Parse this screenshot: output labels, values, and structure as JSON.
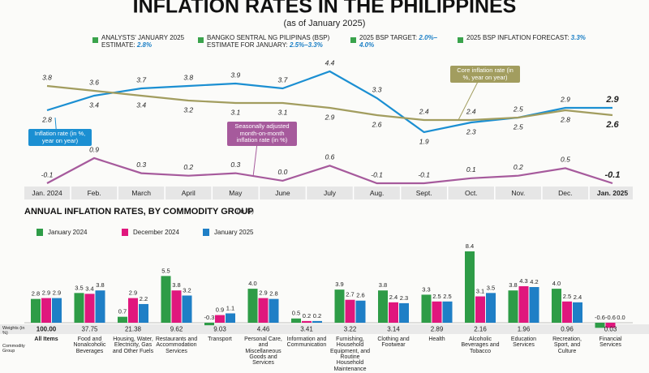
{
  "header": {
    "title": "INFLATION RATES IN THE PHILIPPINES",
    "subtitle": "(as of January 2025)",
    "notes": [
      {
        "label": "ANALYSTS' JANUARY 2025 ESTIMATE:",
        "value": "2.8%"
      },
      {
        "label": "BANGKO SENTRAL NG PILIPINAS (BSP) ESTIMATE FOR JANUARY:",
        "value": "2.5%–3.3%"
      },
      {
        "label": "2025 BSP TARGET:",
        "value": "2.0%–4.0%"
      },
      {
        "label": "2025 BSP INFLATION FORECAST:",
        "value": "3.3%"
      }
    ]
  },
  "chart_data": [
    {
      "type": "line",
      "categories": [
        "Jan. 2024",
        "Feb.",
        "March",
        "April",
        "May",
        "June",
        "July",
        "Aug.",
        "Sept.",
        "Oct.",
        "Nov.",
        "Dec.",
        "Jan. 2025"
      ],
      "series": [
        {
          "name": "Inflation rate (in %, year on year)",
          "color": "#1b8fd2",
          "values": [
            2.8,
            3.4,
            3.7,
            3.8,
            3.9,
            3.7,
            4.4,
            3.3,
            1.9,
            2.3,
            2.5,
            2.9,
            2.9
          ]
        },
        {
          "name": "Core inflation rate (in %, year on year)",
          "color": "#a29d5f",
          "values": [
            3.8,
            3.6,
            3.4,
            3.2,
            3.1,
            3.1,
            2.9,
            2.6,
            2.4,
            2.4,
            2.5,
            2.8,
            2.6
          ]
        },
        {
          "name": "Seasonally adjusted month-on-month inflation rate (in %)",
          "color": "#a65a9c",
          "axis": "y2",
          "values": [
            -0.1,
            0.9,
            0.3,
            0.2,
            0.3,
            0.0,
            0.6,
            -0.1,
            -0.1,
            0.1,
            0.2,
            0.5,
            -0.1
          ],
          "value_labels": [
            "-0.1",
            "0.9",
            "0.3",
            "0.2",
            "0.3",
            "0.0",
            "0.6",
            "-0.1",
            "-0.1",
            "0.1",
            "0.2",
            "0.5",
            "-0.1"
          ]
        }
      ]
    },
    {
      "type": "bar",
      "title": "ANNUAL INFLATION RATES, BY COMMODITY GROUP",
      "subtitle": "(in %)",
      "weights_label": "Weights (in %)",
      "group_label": "Commodity Group",
      "categories": [
        "All Items",
        "Food and Nonalcoholic Beverages",
        "Housing, Water, Electricity, Gas and Other Fuels",
        "Restaurants and Accommodation Services",
        "Transport",
        "Personal Care, and Miscellaneous Goods and Services",
        "Information and Communication",
        "Furnishing, Household Equipment, and Routine Household Maintenance",
        "Clothing and Footwear",
        "Health",
        "Alcoholic Beverages and Tobacco",
        "Education Services",
        "Recreation, Sport, and Culture",
        "Financial Services"
      ],
      "weights": [
        "100.00",
        "37.75",
        "21.38",
        "9.62",
        "9.03",
        "4.46",
        "3.41",
        "3.22",
        "3.14",
        "2.89",
        "2.16",
        "1.96",
        "0.96",
        "0.03"
      ],
      "series": [
        {
          "name": "January 2024",
          "color": "#2e9c47",
          "values": [
            2.8,
            3.5,
            0.7,
            5.5,
            -0.3,
            4.0,
            0.5,
            3.9,
            3.8,
            3.3,
            8.4,
            3.8,
            4.0,
            -0.6
          ],
          "value_labels": [
            "2.8",
            "3.5",
            "0.7",
            "5.5",
            "-0.3",
            "4.0",
            "0.5",
            "3.9",
            "3.8",
            "3.3",
            "8.4",
            "3.8",
            "4.0",
            "-0.6"
          ]
        },
        {
          "name": "December 2024",
          "color": "#e0177d",
          "values": [
            2.9,
            3.4,
            2.9,
            3.8,
            0.9,
            2.9,
            0.2,
            2.7,
            2.4,
            2.5,
            3.1,
            4.3,
            2.5,
            -0.6
          ],
          "value_labels": [
            "2.9",
            "3.4",
            "2.9",
            "3.8",
            "0.9",
            "2.9",
            "0.2",
            "2.7",
            "2.4",
            "2.5",
            "3.1",
            "4.3",
            "2.5",
            "-0.6"
          ]
        },
        {
          "name": "January 2025",
          "color": "#1f7fc6",
          "values": [
            2.9,
            3.8,
            2.2,
            3.2,
            1.1,
            2.8,
            0.2,
            2.6,
            2.3,
            2.5,
            3.5,
            4.2,
            2.4,
            0.0
          ],
          "value_labels": [
            "2.9",
            "3.8",
            "2.2",
            "3.2",
            "1.1",
            "2.8",
            "0.2",
            "2.6",
            "2.3",
            "2.5",
            "3.5",
            "4.2",
            "2.4",
            "0.0"
          ]
        }
      ]
    }
  ]
}
